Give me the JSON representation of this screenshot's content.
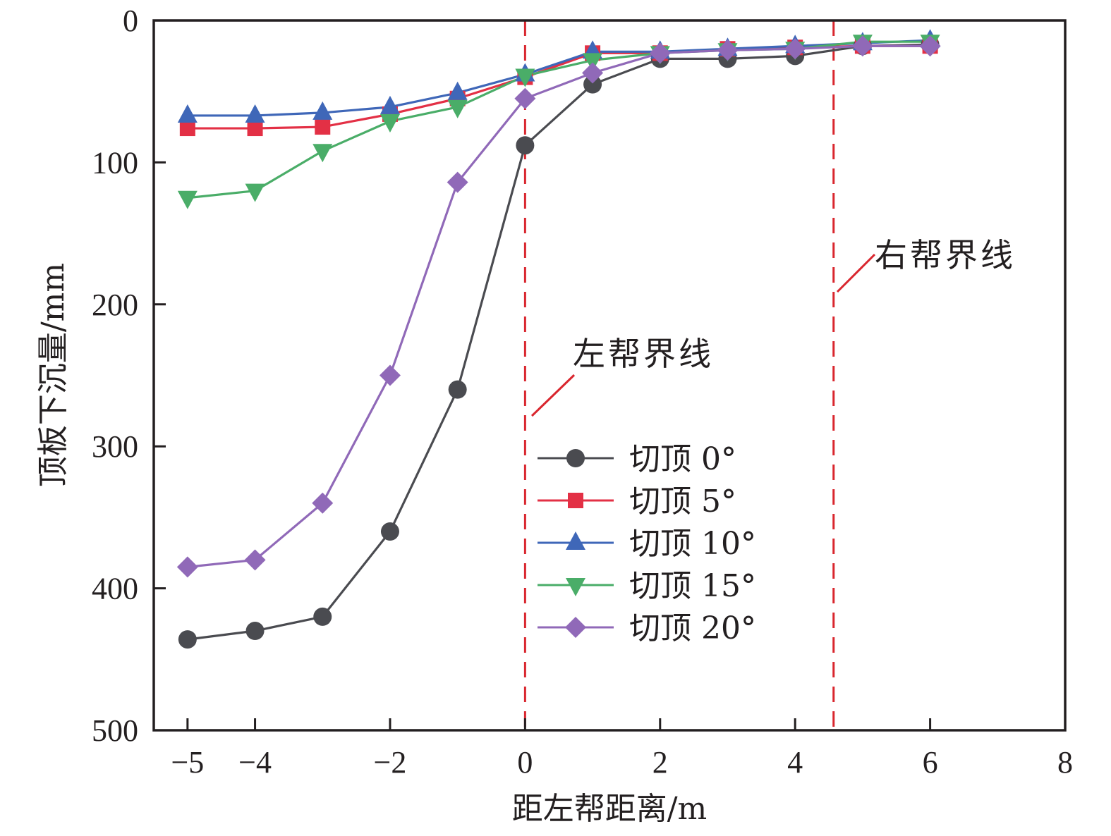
{
  "chart_data": {
    "type": "line",
    "title": "",
    "xlabel": "距左帮距离/m",
    "ylabel": "顶板下沉量/mm",
    "xlim": [
      -5.5,
      8
    ],
    "ylim": [
      0,
      500
    ],
    "y_inverted": true,
    "grid": false,
    "x_ticks": [
      -5,
      -4,
      -2,
      0,
      2,
      4,
      6,
      8
    ],
    "x_tick_labels": [
      "−5",
      "−4",
      "−2",
      "0",
      "2",
      "4",
      "6",
      "8"
    ],
    "y_ticks": [
      0,
      100,
      200,
      300,
      400,
      500
    ],
    "y_tick_labels": [
      "0",
      "100",
      "200",
      "300",
      "400",
      "500"
    ],
    "x": [
      -5,
      -4,
      -3,
      -2,
      -1,
      0,
      1,
      2,
      3,
      4,
      5,
      6
    ],
    "series": [
      {
        "name": "切顶 0°",
        "color": "#4a4b50",
        "marker": "circle",
        "values": [
          436,
          430,
          420,
          360,
          260,
          88,
          45,
          27,
          27,
          25,
          18,
          17
        ]
      },
      {
        "name": "切顶 5°",
        "color": "#e33045",
        "marker": "square",
        "values": [
          76,
          76,
          75,
          66,
          55,
          40,
          23,
          23,
          20,
          19,
          18,
          18
        ]
      },
      {
        "name": "切顶 10°",
        "color": "#3f67b8",
        "marker": "triangle-up",
        "values": [
          67,
          67,
          65,
          61,
          51,
          38,
          22,
          22,
          20,
          18,
          16,
          14
        ]
      },
      {
        "name": "切顶 15°",
        "color": "#4aad68",
        "marker": "triangle-down",
        "values": [
          125,
          120,
          92,
          71,
          61,
          39,
          28,
          23,
          21,
          20,
          15,
          15
        ]
      },
      {
        "name": "切顶 20°",
        "color": "#9069b8",
        "marker": "diamond",
        "values": [
          385,
          380,
          340,
          250,
          114,
          55,
          37,
          23,
          21,
          20,
          18,
          18
        ]
      }
    ],
    "legend_position": "center-right",
    "reference_lines": [
      {
        "name": "左帮界线",
        "x": 0,
        "color": "#d9262e",
        "style": "dashed"
      },
      {
        "name": "右帮界线",
        "x": 4.57,
        "color": "#d9262e",
        "style": "dashed"
      }
    ],
    "annotations": [
      {
        "text": "左帮界线",
        "target_x": 0
      },
      {
        "text": "右帮界线",
        "target_x": 4.57
      }
    ]
  }
}
